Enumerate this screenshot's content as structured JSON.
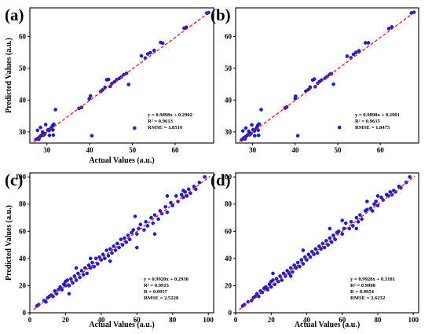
{
  "colors": {
    "points": "#1f1fd6",
    "point_stroke": "#0a0a8c",
    "fit_line": "#e31a1c",
    "frame": "#000000"
  },
  "chart_data": [
    {
      "type": "scatter",
      "panel_label": "(a)",
      "xlabel": "Actual Values (a.u.)",
      "ylabel": "Predicted Values (a.u.)",
      "xlim": [
        26,
        69
      ],
      "ylim": [
        26.5,
        69
      ],
      "xticks": [
        30,
        40,
        50,
        60
      ],
      "yticks": [
        30,
        40,
        50,
        60
      ],
      "fit_line": {
        "slope": 0.9898,
        "intercept": 0.2902,
        "style": "dashed"
      },
      "annotations": [
        "y = 0.9898x + 0.2902",
        "R² = 0.9613",
        "RMSE = 1.8516"
      ],
      "points": [
        [
          27.4,
          27.6
        ],
        [
          27.9,
          28.0
        ],
        [
          28.1,
          27.7
        ],
        [
          28.3,
          28.4
        ],
        [
          28.6,
          28.8
        ],
        [
          28.9,
          29.1
        ],
        [
          29.2,
          29.0
        ],
        [
          29.5,
          29.4
        ],
        [
          27.8,
          30.5
        ],
        [
          28.5,
          31.4
        ],
        [
          29.0,
          30.0
        ],
        [
          30.2,
          30.6
        ],
        [
          30.5,
          30.4
        ],
        [
          30.8,
          31.0
        ],
        [
          31.1,
          31.3
        ],
        [
          31.3,
          31.9
        ],
        [
          31.6,
          32.4
        ],
        [
          31.4,
          30.6
        ],
        [
          31.5,
          29.0
        ],
        [
          32.0,
          37.0
        ],
        [
          30.6,
          28.9
        ],
        [
          29.7,
          32.3
        ],
        [
          37.5,
          37.4
        ],
        [
          38.1,
          37.7
        ],
        [
          39.9,
          40.4
        ],
        [
          40.2,
          41.3
        ],
        [
          40.5,
          28.8
        ],
        [
          42.6,
          42.7
        ],
        [
          43.0,
          43.2
        ],
        [
          43.6,
          44.0
        ],
        [
          44.0,
          46.4
        ],
        [
          44.4,
          46.5
        ],
        [
          44.8,
          44.3
        ],
        [
          45.2,
          45.2
        ],
        [
          45.8,
          45.7
        ],
        [
          46.3,
          46.4
        ],
        [
          46.9,
          46.8
        ],
        [
          47.4,
          47.3
        ],
        [
          48.0,
          48.0
        ],
        [
          48.6,
          48.4
        ],
        [
          49.1,
          44.9
        ],
        [
          50.5,
          31.2
        ],
        [
          52.1,
          53.9
        ],
        [
          53.0,
          53.2
        ],
        [
          53.6,
          54.5
        ],
        [
          54.2,
          54.9
        ],
        [
          55.1,
          55.6
        ],
        [
          56.6,
          58.1
        ],
        [
          57.1,
          57.9
        ],
        [
          62.1,
          62.6
        ],
        [
          62.6,
          62.9
        ],
        [
          67.4,
          67.3
        ],
        [
          67.8,
          67.5
        ]
      ]
    },
    {
      "type": "scatter",
      "panel_label": "(b)",
      "xlabel": "",
      "ylabel": "",
      "xlim": [
        26,
        69
      ],
      "ylim": [
        26.5,
        69
      ],
      "xticks": [
        30,
        40,
        50,
        60
      ],
      "yticks": [
        30,
        40,
        50,
        60
      ],
      "fit_line": {
        "slope": 0.9898,
        "intercept": 0.2901,
        "style": "dashed"
      },
      "annotations": [
        "y = 0.9898x + 0.2901",
        "R² = 0.9615",
        "RMSE = 1.8475"
      ],
      "points": [
        [
          27.4,
          27.5
        ],
        [
          27.9,
          28.1
        ],
        [
          28.2,
          27.8
        ],
        [
          28.4,
          28.5
        ],
        [
          28.7,
          28.9
        ],
        [
          29.0,
          29.2
        ],
        [
          29.3,
          29.1
        ],
        [
          29.6,
          29.5
        ],
        [
          27.7,
          30.3
        ],
        [
          28.4,
          31.2
        ],
        [
          29.1,
          30.2
        ],
        [
          30.1,
          30.7
        ],
        [
          30.4,
          30.3
        ],
        [
          30.9,
          31.1
        ],
        [
          31.0,
          31.4
        ],
        [
          31.2,
          32.0
        ],
        [
          31.5,
          32.5
        ],
        [
          31.3,
          30.5
        ],
        [
          31.4,
          28.9
        ],
        [
          32.0,
          37.0
        ],
        [
          30.5,
          28.8
        ],
        [
          29.8,
          32.2
        ],
        [
          37.6,
          37.5
        ],
        [
          38.0,
          37.8
        ],
        [
          40.0,
          40.5
        ],
        [
          40.1,
          41.2
        ],
        [
          40.6,
          28.8
        ],
        [
          42.5,
          42.8
        ],
        [
          43.1,
          43.3
        ],
        [
          43.5,
          44.1
        ],
        [
          44.1,
          46.3
        ],
        [
          44.5,
          46.6
        ],
        [
          44.7,
          44.2
        ],
        [
          45.3,
          45.3
        ],
        [
          45.7,
          45.8
        ],
        [
          46.2,
          46.3
        ],
        [
          47.0,
          46.9
        ],
        [
          47.5,
          47.4
        ],
        [
          48.1,
          48.1
        ],
        [
          48.5,
          48.3
        ],
        [
          49.0,
          45.0
        ],
        [
          50.4,
          31.4
        ],
        [
          52.2,
          53.8
        ],
        [
          53.1,
          53.3
        ],
        [
          53.7,
          54.4
        ],
        [
          54.3,
          55.0
        ],
        [
          55.0,
          55.5
        ],
        [
          56.5,
          58.0
        ],
        [
          57.2,
          58.0
        ],
        [
          62.0,
          62.5
        ],
        [
          62.7,
          63.0
        ],
        [
          67.3,
          67.4
        ],
        [
          67.9,
          67.6
        ]
      ]
    },
    {
      "type": "scatter",
      "panel_label": "(c)",
      "xlabel": "Actual Values (a.u.)",
      "ylabel": "Predicted Values (a.u.)",
      "xlim": [
        0,
        103
      ],
      "ylim": [
        0,
        103
      ],
      "xticks": [
        0,
        20,
        40,
        60,
        80,
        100
      ],
      "yticks": [
        0,
        20,
        40,
        60,
        80,
        100
      ],
      "fit_line": {
        "slope": 0.992,
        "intercept": 0.293,
        "style": "dashed"
      },
      "annotations": [
        "y = 0.9920x + 0.2930",
        "R² = 0.9915",
        "R = 0.9957",
        "RMSE = 2.5228"
      ],
      "points": [
        [
          4,
          5
        ],
        [
          5,
          6
        ],
        [
          8,
          9
        ],
        [
          9,
          8
        ],
        [
          10,
          11
        ],
        [
          11,
          12
        ],
        [
          12,
          13
        ],
        [
          13,
          12
        ],
        [
          14,
          16
        ],
        [
          15,
          14
        ],
        [
          16,
          17
        ],
        [
          17,
          19
        ],
        [
          18,
          17
        ],
        [
          19,
          21
        ],
        [
          20,
          23
        ],
        [
          20,
          20
        ],
        [
          21,
          24
        ],
        [
          22,
          20
        ],
        [
          23,
          25
        ],
        [
          24,
          22
        ],
        [
          25,
          27
        ],
        [
          26,
          24
        ],
        [
          27,
          29
        ],
        [
          28,
          26
        ],
        [
          29,
          31
        ],
        [
          30,
          28
        ],
        [
          31,
          33
        ],
        [
          32,
          29
        ],
        [
          33,
          35
        ],
        [
          34,
          33
        ],
        [
          35,
          37
        ],
        [
          36,
          34
        ],
        [
          37,
          40
        ],
        [
          38,
          36
        ],
        [
          39,
          41
        ],
        [
          40,
          39
        ],
        [
          41,
          43
        ],
        [
          42,
          40
        ],
        [
          43,
          46
        ],
        [
          44,
          42
        ],
        [
          45,
          47
        ],
        [
          46,
          44
        ],
        [
          47,
          49
        ],
        [
          48,
          46
        ],
        [
          49,
          51
        ],
        [
          50,
          48
        ],
        [
          51,
          54
        ],
        [
          52,
          50
        ],
        [
          53,
          55
        ],
        [
          54,
          52
        ],
        [
          55,
          57
        ],
        [
          56,
          54
        ],
        [
          57,
          59
        ],
        [
          58,
          61
        ],
        [
          60,
          58
        ],
        [
          61,
          62
        ],
        [
          62,
          65
        ],
        [
          64,
          61
        ],
        [
          65,
          67
        ],
        [
          66,
          64
        ],
        [
          68,
          70
        ],
        [
          69,
          66
        ],
        [
          70,
          72
        ],
        [
          72,
          69
        ],
        [
          73,
          75
        ],
        [
          74,
          73
        ],
        [
          76,
          78
        ],
        [
          77,
          74
        ],
        [
          79,
          81
        ],
        [
          80,
          79
        ],
        [
          82,
          86
        ],
        [
          83,
          82
        ],
        [
          85,
          87
        ],
        [
          86,
          85
        ],
        [
          87,
          89
        ],
        [
          88,
          86
        ],
        [
          89,
          91
        ],
        [
          90,
          88
        ],
        [
          92,
          93
        ],
        [
          93,
          91
        ],
        [
          95,
          96
        ],
        [
          98,
          100
        ],
        [
          26,
          33
        ],
        [
          34,
          40
        ],
        [
          45,
          38
        ],
        [
          59,
          71
        ],
        [
          70,
          58
        ],
        [
          60,
          48
        ],
        [
          22,
          14
        ],
        [
          77,
          86
        ],
        [
          86,
          90
        ]
      ]
    },
    {
      "type": "scatter",
      "panel_label": "(d)",
      "xlabel": "Actual Values (a.u.)",
      "ylabel": "",
      "xlim": [
        0,
        103
      ],
      "ylim": [
        0,
        103
      ],
      "xticks": [
        0,
        20,
        40,
        60,
        80,
        100
      ],
      "yticks": [
        0,
        20,
        40,
        60,
        80,
        100
      ],
      "fit_line": {
        "slope": 0.9928,
        "intercept": 0.3181,
        "style": "dashed"
      },
      "annotations": [
        "y = 0.9928x + 0.3181",
        "R² = 0.9908",
        "R = 0.9954",
        "RMSE = 2.6232"
      ],
      "points": [
        [
          4,
          5
        ],
        [
          5,
          6
        ],
        [
          7,
          8
        ],
        [
          9,
          9
        ],
        [
          10,
          11
        ],
        [
          11,
          12
        ],
        [
          12,
          14
        ],
        [
          13,
          12
        ],
        [
          14,
          16
        ],
        [
          15,
          15
        ],
        [
          16,
          18
        ],
        [
          17,
          19
        ],
        [
          18,
          17
        ],
        [
          19,
          21
        ],
        [
          20,
          23
        ],
        [
          20,
          19
        ],
        [
          21,
          24
        ],
        [
          22,
          21
        ],
        [
          23,
          25
        ],
        [
          24,
          23
        ],
        [
          25,
          27
        ],
        [
          26,
          24
        ],
        [
          27,
          29
        ],
        [
          28,
          27
        ],
        [
          29,
          31
        ],
        [
          30,
          29
        ],
        [
          31,
          33
        ],
        [
          32,
          30
        ],
        [
          33,
          35
        ],
        [
          34,
          33
        ],
        [
          35,
          37
        ],
        [
          36,
          34
        ],
        [
          37,
          39
        ],
        [
          38,
          36
        ],
        [
          39,
          41
        ],
        [
          40,
          39
        ],
        [
          41,
          43
        ],
        [
          42,
          41
        ],
        [
          43,
          45
        ],
        [
          44,
          43
        ],
        [
          45,
          47
        ],
        [
          46,
          44
        ],
        [
          47,
          49
        ],
        [
          48,
          47
        ],
        [
          49,
          51
        ],
        [
          50,
          48
        ],
        [
          51,
          53
        ],
        [
          52,
          50
        ],
        [
          53,
          55
        ],
        [
          54,
          52
        ],
        [
          55,
          57
        ],
        [
          56,
          54
        ],
        [
          57,
          59
        ],
        [
          58,
          60
        ],
        [
          60,
          58
        ],
        [
          61,
          62
        ],
        [
          62,
          66
        ],
        [
          64,
          62
        ],
        [
          65,
          67
        ],
        [
          66,
          64
        ],
        [
          68,
          70
        ],
        [
          69,
          67
        ],
        [
          70,
          72
        ],
        [
          71,
          69
        ],
        [
          73,
          75
        ],
        [
          74,
          76
        ],
        [
          76,
          77
        ],
        [
          77,
          75
        ],
        [
          79,
          82
        ],
        [
          80,
          79
        ],
        [
          82,
          85
        ],
        [
          83,
          83
        ],
        [
          85,
          87
        ],
        [
          86,
          86
        ],
        [
          87,
          89
        ],
        [
          88,
          87
        ],
        [
          89,
          90
        ],
        [
          90,
          89
        ],
        [
          92,
          93
        ],
        [
          93,
          92
        ],
        [
          96,
          96
        ],
        [
          98,
          100
        ],
        [
          21,
          29
        ],
        [
          31,
          27
        ],
        [
          38,
          46
        ],
        [
          53,
          62
        ],
        [
          60,
          68
        ],
        [
          68,
          62
        ],
        [
          74,
          82
        ],
        [
          80,
          86
        ],
        [
          78,
          80
        ]
      ]
    }
  ]
}
